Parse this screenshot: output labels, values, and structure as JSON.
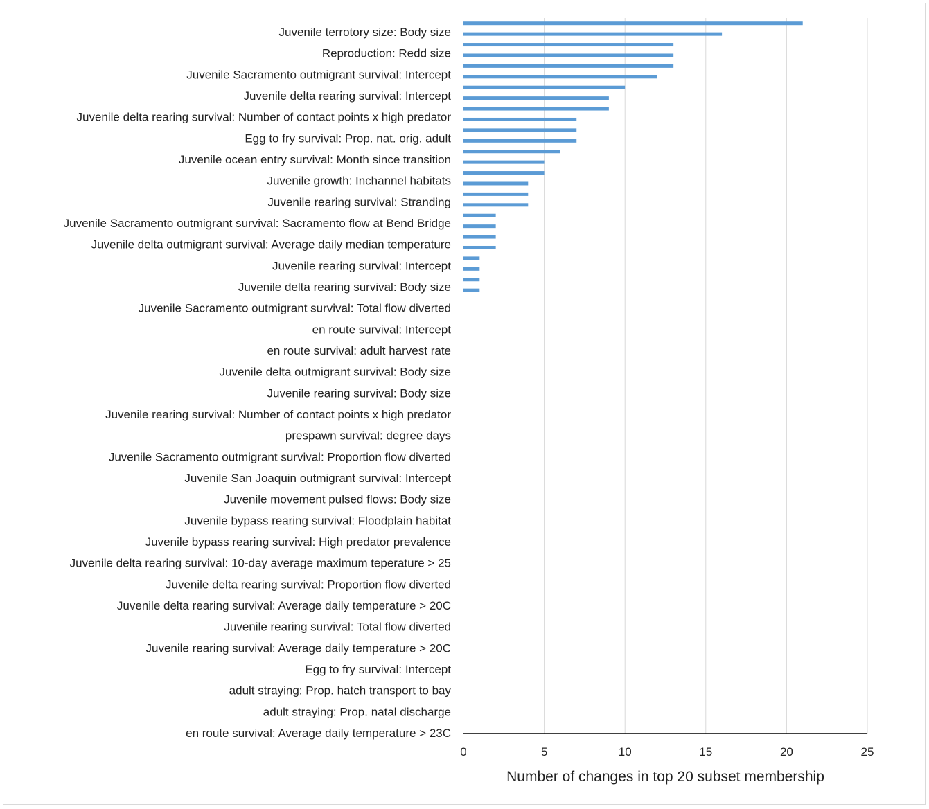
{
  "chart_data": {
    "type": "bar",
    "orientation": "horizontal",
    "xlabel": "Number of changes in top 20 subset membership",
    "ylabel": "",
    "xlim": [
      0,
      25
    ],
    "xticks": [
      "0",
      "5",
      "10",
      "15",
      "20",
      "25"
    ],
    "grid": "vertical",
    "bar_color": "#5b9bd5",
    "grid_color": "#d9d9d9",
    "printed_labels": [
      "Juvenile terrotory size: Body size",
      "Reproduction: Redd size",
      "Juvenile Sacramento outmigrant survival: Intercept",
      "Juvenile delta rearing survival: Intercept",
      "Juvenile delta rearing survival: Number of contact points x high predator",
      "Egg to fry survival: Prop. nat. orig. adult",
      "Juvenile ocean entry survival: Month since transition",
      "Juvenile growth: Inchannel habitats",
      "Juvenile rearing survival: Stranding",
      "Juvenile Sacramento outmigrant survival: Sacramento flow at Bend Bridge",
      "Juvenile delta outmigrant survival: Average daily median temperature",
      "Juvenile rearing survival: Intercept",
      "Juvenile delta rearing survival: Body size",
      "Juvenile Sacramento outmigrant survival: Total flow diverted",
      "en route survival: Intercept",
      "en route survival: adult harvest rate",
      "Juvenile delta outmigrant survival: Body size",
      "Juvenile rearing survival: Body size",
      "Juvenile rearing survival: Number of contact points x high predator",
      "prespawn survival: degree days",
      "Juvenile Sacramento outmigrant survival: Proportion flow diverted",
      "Juvenile San Joaquin outmigrant survival: Intercept",
      "Juvenile movement pulsed flows: Body size",
      "Juvenile bypass rearing survival: Floodplain habitat",
      "Juvenile bypass rearing survival: High predator prevalence",
      "Juvenile delta rearing survival: 10-day average maximum teperature > 25",
      "Juvenile delta rearing survival: Proportion flow diverted",
      "Juvenile delta rearing survival: Average daily temperature > 20C",
      "Juvenile rearing survival: Total flow diverted",
      "Juvenile rearing survival: Average daily temperature > 20C",
      "Egg to fry survival: Intercept",
      "adult straying: Prop. hatch transport to bay",
      "adult straying: Prop. natal discharge",
      "en route survival: Average daily temperature > 23C"
    ],
    "values": [
      21,
      16,
      13,
      13,
      13,
      12,
      10,
      9,
      9,
      7,
      7,
      7,
      6,
      5,
      5,
      4,
      4,
      4,
      2,
      2,
      2,
      2,
      1,
      1,
      1,
      1,
      0,
      0,
      0,
      0,
      0,
      0,
      0,
      0,
      0,
      0,
      0,
      0,
      0,
      0,
      0,
      0,
      0,
      0,
      0,
      0,
      0,
      0,
      0,
      0,
      0,
      0,
      0,
      0,
      0,
      0,
      0,
      0,
      0,
      0,
      0,
      0,
      0,
      0,
      0,
      0,
      0
    ]
  }
}
